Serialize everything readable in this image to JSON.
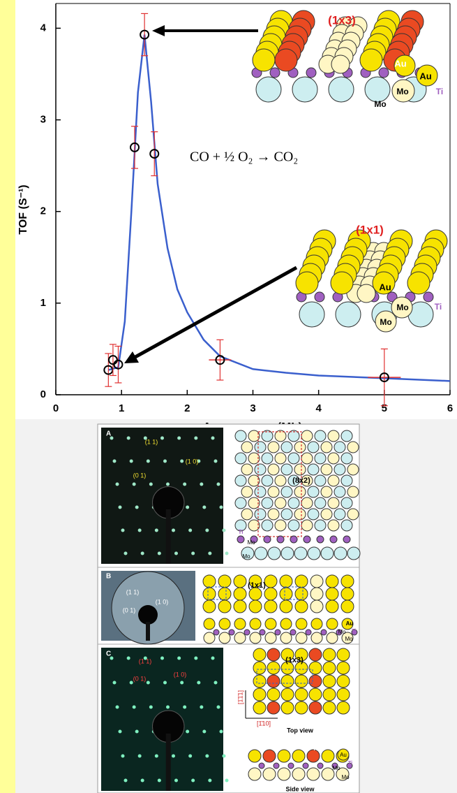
{
  "chart_data": {
    "type": "scatter",
    "ylabel": "TOF (S⁻¹)",
    "xlabel": "Au coverage (ML)",
    "annotation": "CO + ½ O₂ → CO₂",
    "x": [
      0.8,
      0.87,
      0.95,
      1.2,
      1.35,
      1.5,
      2.5,
      5.0
    ],
    "values": [
      0.27,
      0.38,
      0.33,
      2.7,
      3.93,
      2.63,
      0.38,
      0.19
    ],
    "errors": [
      0.18,
      0.17,
      0.2,
      0.23,
      0.23,
      0.24,
      0.22,
      0.31
    ],
    "x_errors": [
      null,
      null,
      null,
      null,
      null,
      null,
      0.17,
      0.25
    ],
    "marker_color": "#000000",
    "error_color": "#e03030",
    "fit_x": [
      0.8,
      0.95,
      1.05,
      1.15,
      1.25,
      1.35,
      1.45,
      1.55,
      1.7,
      1.85,
      2.0,
      2.25,
      2.5,
      3.0,
      3.5,
      4.0,
      5.0,
      6.0
    ],
    "fit_values": [
      0.27,
      0.3,
      0.8,
      2.0,
      3.3,
      3.93,
      3.2,
      2.3,
      1.6,
      1.15,
      0.9,
      0.6,
      0.42,
      0.28,
      0.24,
      0.21,
      0.18,
      0.15
    ],
    "fit_color": "#3a5fcd",
    "xlim": [
      0,
      6
    ],
    "ylim": [
      0,
      4.27
    ],
    "xticks": [
      0,
      1,
      2,
      3,
      4,
      5,
      6
    ],
    "yticks": [
      0,
      1,
      2,
      3,
      4
    ]
  },
  "insets": [
    {
      "title": "(1x3)",
      "labels": [
        "Au",
        "Au",
        "Mo",
        "Mo",
        "Ti"
      ]
    },
    {
      "title": "(1x1)",
      "labels": [
        "Au",
        "Mo",
        "Mo",
        "Ti"
      ]
    }
  ],
  "panels": [
    {
      "letter": "A",
      "spots": [
        "(1 1)",
        "(1 0)",
        "(0 1)"
      ],
      "cell": "(8x2)",
      "legend": [
        "Ti",
        "Mo",
        "Mo"
      ]
    },
    {
      "letter": "B",
      "spots": [
        "(1 1)",
        "(0 1)",
        "(1 0)"
      ],
      "cell": "(1x1)",
      "legend": [
        "Au",
        "Ti",
        "Mo",
        "Mo"
      ]
    },
    {
      "letter": "C",
      "spots": [
        "(1 1)",
        "(0 1)",
        "(1 0)"
      ],
      "cell": "(1x3)",
      "directions": [
        "[1̄1̄1]",
        "[1̄10]"
      ],
      "views": [
        "Top view",
        "Side view"
      ],
      "legend": [
        "Au",
        "Au",
        "Ti",
        "Mo",
        "Mo"
      ]
    }
  ]
}
